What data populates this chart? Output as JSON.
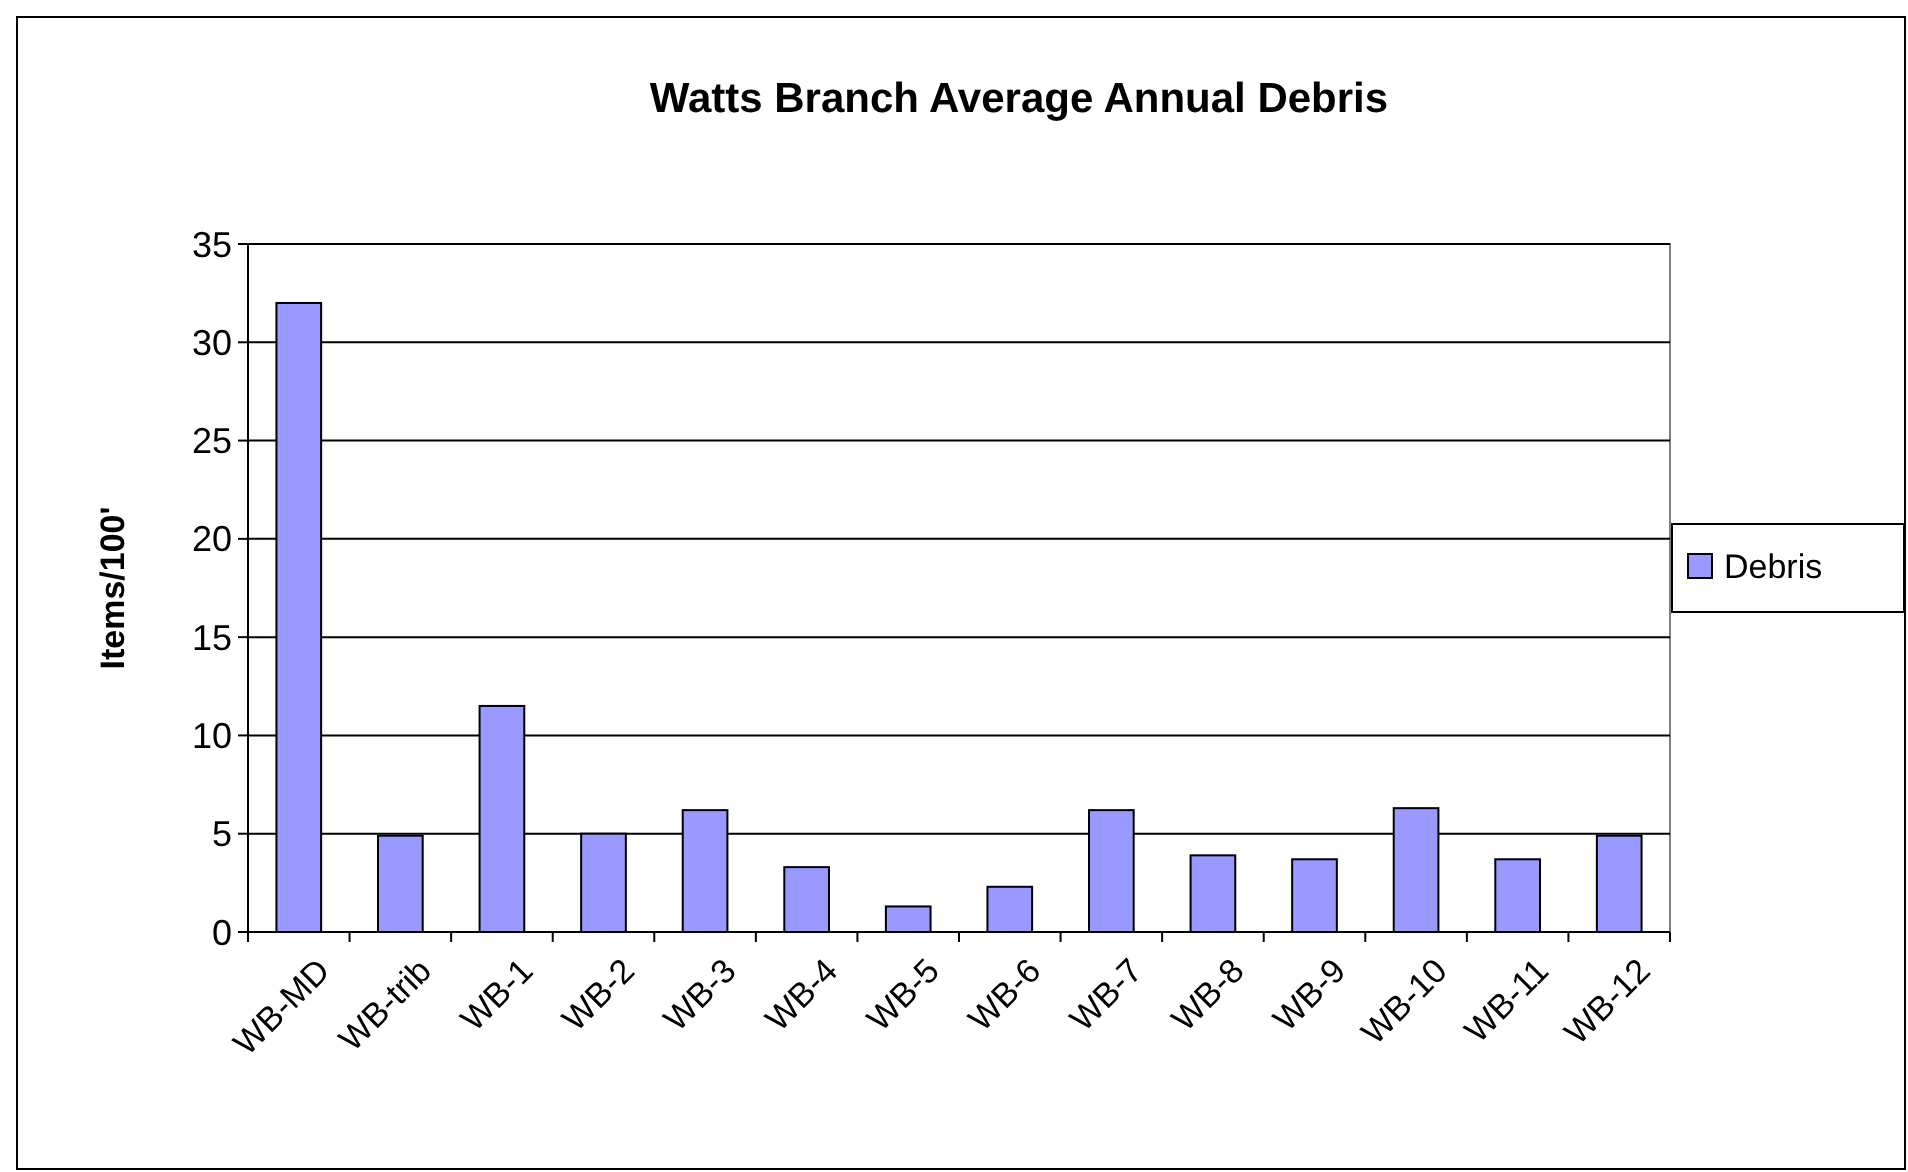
{
  "chart_data": {
    "type": "bar",
    "title": "Watts Branch Average Annual Debris",
    "ylabel": "Items/100'",
    "categories": [
      "WB-MD",
      "WB-trib",
      "WB-1",
      "WB-2",
      "WB-3",
      "WB-4",
      "WB-5",
      "WB-6",
      "WB-7",
      "WB-8",
      "WB-9",
      "WB-10",
      "WB-11",
      "WB-12"
    ],
    "series": [
      {
        "name": "Debris",
        "color": "#9999ff",
        "values": [
          32,
          4.9,
          11.5,
          5.0,
          6.2,
          3.3,
          1.3,
          2.3,
          6.2,
          3.9,
          3.7,
          6.3,
          3.7,
          4.9
        ]
      }
    ],
    "ylim": [
      0,
      35
    ],
    "yticks": [
      0,
      5,
      10,
      15,
      20,
      25,
      30,
      35
    ],
    "grid": "y",
    "legend": "right"
  }
}
